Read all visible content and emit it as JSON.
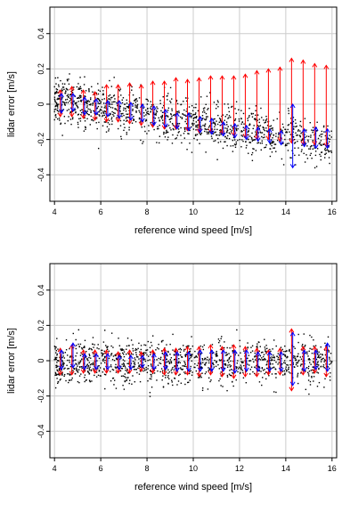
{
  "chart_data": [
    {
      "type": "scatter",
      "title": "",
      "xlabel": "reference wind speed [m/s]",
      "ylabel": "lidar error [m/s]",
      "xlim": [
        3.8,
        16.2
      ],
      "ylim": [
        -0.55,
        0.55
      ],
      "x_ticks": [
        "4",
        "6",
        "8",
        "10",
        "12",
        "14",
        "16"
      ],
      "y_ticks": [
        "-0.4",
        "-0.2",
        "0",
        "0.2",
        "0.4"
      ],
      "grid": true,
      "legend": "none",
      "colors": {
        "points": "#000000",
        "red_arrows": "#ff0000",
        "blue_arrows": "#0000ff"
      },
      "scatter_trend": {
        "x": [
          4,
          16
        ],
        "y": [
          0.02,
          -0.22
        ]
      },
      "scatter_spread_sd": 0.065,
      "red_arrows": [
        {
          "x": 4.25,
          "y0": -0.07,
          "y1": 0.08
        },
        {
          "x": 4.75,
          "y0": -0.07,
          "y1": 0.1
        },
        {
          "x": 5.25,
          "y0": -0.08,
          "y1": 0.08
        },
        {
          "x": 5.75,
          "y0": -0.09,
          "y1": 0.07
        },
        {
          "x": 6.25,
          "y0": -0.1,
          "y1": 0.11
        },
        {
          "x": 6.75,
          "y0": -0.1,
          "y1": 0.11
        },
        {
          "x": 7.25,
          "y0": -0.11,
          "y1": 0.12
        },
        {
          "x": 7.75,
          "y0": -0.12,
          "y1": 0.11
        },
        {
          "x": 8.25,
          "y0": -0.13,
          "y1": 0.13
        },
        {
          "x": 8.75,
          "y0": -0.14,
          "y1": 0.13
        },
        {
          "x": 9.25,
          "y0": -0.14,
          "y1": 0.15
        },
        {
          "x": 9.75,
          "y0": -0.15,
          "y1": 0.14
        },
        {
          "x": 10.25,
          "y0": -0.16,
          "y1": 0.15
        },
        {
          "x": 10.75,
          "y0": -0.16,
          "y1": 0.16
        },
        {
          "x": 11.25,
          "y0": -0.17,
          "y1": 0.16
        },
        {
          "x": 11.75,
          "y0": -0.18,
          "y1": 0.16
        },
        {
          "x": 12.25,
          "y0": -0.19,
          "y1": 0.17
        },
        {
          "x": 12.75,
          "y0": -0.2,
          "y1": 0.19
        },
        {
          "x": 13.25,
          "y0": -0.2,
          "y1": 0.2
        },
        {
          "x": 13.75,
          "y0": -0.21,
          "y1": 0.21
        },
        {
          "x": 14.25,
          "y0": -0.22,
          "y1": 0.26
        },
        {
          "x": 14.75,
          "y0": -0.23,
          "y1": 0.25
        },
        {
          "x": 15.25,
          "y0": -0.23,
          "y1": 0.23
        },
        {
          "x": 15.75,
          "y0": -0.24,
          "y1": 0.22
        }
      ],
      "blue_arrows": [
        {
          "x": 4.3,
          "y0": -0.05,
          "y1": 0.06
        },
        {
          "x": 4.8,
          "y0": -0.04,
          "y1": 0.06
        },
        {
          "x": 5.3,
          "y0": -0.06,
          "y1": 0.04
        },
        {
          "x": 5.8,
          "y0": -0.06,
          "y1": 0.03
        },
        {
          "x": 6.3,
          "y0": -0.07,
          "y1": 0.02
        },
        {
          "x": 6.8,
          "y0": -0.08,
          "y1": 0.02
        },
        {
          "x": 7.3,
          "y0": -0.09,
          "y1": 0.01
        },
        {
          "x": 7.8,
          "y0": -0.1,
          "y1": 0.0
        },
        {
          "x": 8.3,
          "y0": -0.12,
          "y1": -0.01
        },
        {
          "x": 8.8,
          "y0": -0.13,
          "y1": -0.03
        },
        {
          "x": 9.3,
          "y0": -0.14,
          "y1": -0.05
        },
        {
          "x": 9.8,
          "y0": -0.15,
          "y1": -0.05
        },
        {
          "x": 10.3,
          "y0": -0.16,
          "y1": -0.07
        },
        {
          "x": 10.8,
          "y0": -0.17,
          "y1": -0.08
        },
        {
          "x": 11.3,
          "y0": -0.18,
          "y1": -0.1
        },
        {
          "x": 11.8,
          "y0": -0.19,
          "y1": -0.11
        },
        {
          "x": 12.3,
          "y0": -0.2,
          "y1": -0.12
        },
        {
          "x": 12.8,
          "y0": -0.21,
          "y1": -0.13
        },
        {
          "x": 13.3,
          "y0": -0.22,
          "y1": -0.14
        },
        {
          "x": 13.8,
          "y0": -0.23,
          "y1": -0.15
        },
        {
          "x": 14.3,
          "y0": -0.36,
          "y1": 0.0
        },
        {
          "x": 14.8,
          "y0": -0.24,
          "y1": -0.14
        },
        {
          "x": 15.3,
          "y0": -0.25,
          "y1": -0.13
        },
        {
          "x": 15.8,
          "y0": -0.25,
          "y1": -0.14
        }
      ]
    },
    {
      "type": "scatter",
      "title": "",
      "xlabel": "reference wind speed [m/s]",
      "ylabel": "lidar error [m/s]",
      "xlim": [
        3.8,
        16.2
      ],
      "ylim": [
        -0.55,
        0.55
      ],
      "x_ticks": [
        "4",
        "6",
        "8",
        "10",
        "12",
        "14",
        "16"
      ],
      "y_ticks": [
        "-0.4",
        "-0.2",
        "0",
        "0.2",
        "0.4"
      ],
      "grid": true,
      "legend": "none",
      "colors": {
        "points": "#000000",
        "red_arrows": "#ff0000",
        "blue_arrows": "#0000ff"
      },
      "scatter_trend": {
        "x": [
          4,
          16
        ],
        "y": [
          -0.01,
          -0.01
        ]
      },
      "scatter_spread_sd": 0.06,
      "red_arrows": [
        {
          "x": 4.25,
          "y0": -0.08,
          "y1": 0.07
        },
        {
          "x": 4.75,
          "y0": -0.08,
          "y1": 0.09
        },
        {
          "x": 5.25,
          "y0": -0.07,
          "y1": 0.06
        },
        {
          "x": 5.75,
          "y0": -0.07,
          "y1": 0.06
        },
        {
          "x": 6.25,
          "y0": -0.07,
          "y1": 0.06
        },
        {
          "x": 6.75,
          "y0": -0.07,
          "y1": 0.05
        },
        {
          "x": 7.25,
          "y0": -0.07,
          "y1": 0.06
        },
        {
          "x": 7.75,
          "y0": -0.06,
          "y1": 0.05
        },
        {
          "x": 8.25,
          "y0": -0.07,
          "y1": 0.06
        },
        {
          "x": 8.75,
          "y0": -0.08,
          "y1": 0.07
        },
        {
          "x": 9.25,
          "y0": -0.08,
          "y1": 0.07
        },
        {
          "x": 9.75,
          "y0": -0.08,
          "y1": 0.08
        },
        {
          "x": 10.25,
          "y0": -0.09,
          "y1": 0.08
        },
        {
          "x": 10.75,
          "y0": -0.08,
          "y1": 0.09
        },
        {
          "x": 11.25,
          "y0": -0.09,
          "y1": 0.08
        },
        {
          "x": 11.75,
          "y0": -0.1,
          "y1": 0.09
        },
        {
          "x": 12.25,
          "y0": -0.09,
          "y1": 0.08
        },
        {
          "x": 12.75,
          "y0": -0.09,
          "y1": 0.07
        },
        {
          "x": 13.25,
          "y0": -0.08,
          "y1": 0.06
        },
        {
          "x": 13.75,
          "y0": -0.08,
          "y1": 0.07
        },
        {
          "x": 14.25,
          "y0": -0.17,
          "y1": 0.18
        },
        {
          "x": 14.75,
          "y0": -0.08,
          "y1": 0.08
        },
        {
          "x": 15.25,
          "y0": -0.07,
          "y1": 0.08
        },
        {
          "x": 15.75,
          "y0": -0.09,
          "y1": 0.08
        }
      ],
      "blue_arrows": [
        {
          "x": 4.3,
          "y0": -0.05,
          "y1": 0.06
        },
        {
          "x": 4.8,
          "y0": -0.04,
          "y1": 0.1
        },
        {
          "x": 5.3,
          "y0": -0.05,
          "y1": 0.04
        },
        {
          "x": 5.8,
          "y0": -0.05,
          "y1": 0.04
        },
        {
          "x": 6.3,
          "y0": -0.05,
          "y1": 0.04
        },
        {
          "x": 6.8,
          "y0": -0.05,
          "y1": 0.03
        },
        {
          "x": 7.3,
          "y0": -0.05,
          "y1": 0.03
        },
        {
          "x": 7.8,
          "y0": -0.04,
          "y1": 0.03
        },
        {
          "x": 8.3,
          "y0": -0.05,
          "y1": 0.04
        },
        {
          "x": 8.8,
          "y0": -0.05,
          "y1": 0.05
        },
        {
          "x": 9.3,
          "y0": -0.06,
          "y1": 0.05
        },
        {
          "x": 9.8,
          "y0": -0.06,
          "y1": 0.05
        },
        {
          "x": 10.3,
          "y0": -0.06,
          "y1": 0.06
        },
        {
          "x": 10.8,
          "y0": -0.06,
          "y1": 0.06
        },
        {
          "x": 11.3,
          "y0": -0.06,
          "y1": 0.06
        },
        {
          "x": 11.8,
          "y0": -0.07,
          "y1": 0.06
        },
        {
          "x": 12.3,
          "y0": -0.06,
          "y1": 0.06
        },
        {
          "x": 12.8,
          "y0": -0.06,
          "y1": 0.05
        },
        {
          "x": 13.3,
          "y0": -0.06,
          "y1": 0.05
        },
        {
          "x": 13.8,
          "y0": -0.06,
          "y1": 0.05
        },
        {
          "x": 14.3,
          "y0": -0.14,
          "y1": 0.16
        },
        {
          "x": 14.8,
          "y0": -0.06,
          "y1": 0.06
        },
        {
          "x": 15.3,
          "y0": -0.05,
          "y1": 0.06
        },
        {
          "x": 15.8,
          "y0": -0.06,
          "y1": 0.1
        }
      ]
    }
  ]
}
